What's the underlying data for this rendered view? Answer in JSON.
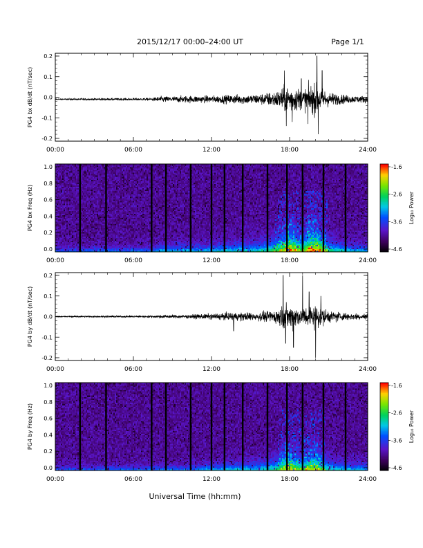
{
  "header": {
    "title": "2015/12/17  00:00–24:00 UT",
    "page": "Page 1/1"
  },
  "xlabel": "Universal Time (hh:mm)",
  "chart_data": [
    {
      "type": "line",
      "ylabel": "PG4 bx dB/dt (nT/sec)",
      "xlim": [
        "00:00",
        "24:00"
      ],
      "xticks": [
        "00:00",
        "06:00",
        "12:00",
        "18:00",
        "24:00"
      ],
      "ylim": [
        -0.2,
        0.2
      ],
      "yticks": [
        "0.2",
        "0.1",
        "0.0",
        "-0.1",
        "-0.2"
      ],
      "baseline": -0.01,
      "envelope": {
        "hours": [
          0,
          2,
          4,
          6,
          7.5,
          8,
          9,
          10,
          11,
          12,
          13,
          14,
          15,
          16,
          17,
          17.5,
          18,
          18.5,
          19,
          19.5,
          20,
          21,
          22,
          23,
          24
        ],
        "amplitude": [
          0.005,
          0.008,
          0.01,
          0.01,
          0.012,
          0.025,
          0.025,
          0.03,
          0.03,
          0.03,
          0.035,
          0.04,
          0.04,
          0.05,
          0.07,
          0.1,
          0.12,
          0.1,
          0.08,
          0.12,
          0.13,
          0.06,
          0.04,
          0.03,
          0.03
        ]
      },
      "spikes": [
        {
          "hour": 17.6,
          "value": 0.13
        },
        {
          "hour": 17.75,
          "value": -0.14
        },
        {
          "hour": 18.2,
          "value": -0.12
        },
        {
          "hour": 18.9,
          "value": 0.09
        },
        {
          "hour": 19.4,
          "value": -0.13
        },
        {
          "hour": 20.1,
          "value": 0.2
        },
        {
          "hour": 20.2,
          "value": -0.18
        },
        {
          "hour": 20.5,
          "value": 0.13
        }
      ]
    },
    {
      "type": "heatmap",
      "ylabel": "PG4 bx Freq (Hz)",
      "xlim": [
        "00:00",
        "24:00"
      ],
      "xticks": [
        "00:00",
        "06:00",
        "12:00",
        "18:00",
        "24:00"
      ],
      "ylim": [
        0.0,
        1.0
      ],
      "yticks": [
        "1.0",
        "0.8",
        "0.6",
        "0.4",
        "0.2",
        "0.0"
      ],
      "colorbar": {
        "label": "Log₁₀ Power",
        "range": [
          -4.6,
          -1.6
        ],
        "ticks": [
          "-1.6",
          "-2.6",
          "-3.6",
          "-4.6"
        ]
      },
      "data_gaps_hours": [
        1.9,
        3.9,
        7.4,
        8.5,
        10.4,
        12.0,
        13.0,
        14.4,
        16.3,
        17.8,
        19.0,
        20.6,
        22.3
      ]
    },
    {
      "type": "line",
      "ylabel": "PG4 by dB/dt (nT/sec)",
      "xlim": [
        "00:00",
        "24:00"
      ],
      "xticks": [
        "00:00",
        "06:00",
        "12:00",
        "18:00",
        "24:00"
      ],
      "ylim": [
        -0.2,
        0.2
      ],
      "yticks": [
        "0.2",
        "0.1",
        "0.0",
        "-0.1",
        "-0.2"
      ],
      "baseline": 0.0,
      "envelope": {
        "hours": [
          0,
          2,
          4,
          6,
          7.5,
          8,
          9,
          10,
          11,
          12,
          13,
          14,
          15,
          16,
          17,
          17.5,
          18,
          18.5,
          19,
          19.5,
          20,
          21,
          22,
          23,
          24
        ],
        "amplitude": [
          0.004,
          0.006,
          0.008,
          0.008,
          0.01,
          0.012,
          0.015,
          0.015,
          0.02,
          0.025,
          0.03,
          0.035,
          0.035,
          0.04,
          0.06,
          0.09,
          0.1,
          0.09,
          0.07,
          0.1,
          0.1,
          0.05,
          0.035,
          0.03,
          0.025
        ]
      },
      "spikes": [
        {
          "hour": 13.7,
          "value": -0.07
        },
        {
          "hour": 17.5,
          "value": 0.2
        },
        {
          "hour": 17.7,
          "value": -0.13
        },
        {
          "hour": 18.3,
          "value": -0.15
        },
        {
          "hour": 19.0,
          "value": 0.2
        },
        {
          "hour": 19.5,
          "value": 0.12
        },
        {
          "hour": 20.0,
          "value": -0.2
        },
        {
          "hour": 20.4,
          "value": 0.1
        }
      ]
    },
    {
      "type": "heatmap",
      "ylabel": "PG4 by Freq (Hz)",
      "xlim": [
        "00:00",
        "24:00"
      ],
      "xticks": [
        "00:00",
        "06:00",
        "12:00",
        "18:00",
        "24:00"
      ],
      "ylim": [
        0.0,
        1.0
      ],
      "yticks": [
        "1.0",
        "0.8",
        "0.6",
        "0.4",
        "0.2",
        "0.0"
      ],
      "colorbar": {
        "label": "Log₁₀ Power",
        "range": [
          -4.6,
          -1.6
        ],
        "ticks": [
          "-1.6",
          "-2.6",
          "-3.6",
          "-4.6"
        ]
      },
      "data_gaps_hours": [
        1.9,
        3.9,
        7.4,
        8.5,
        10.4,
        12.0,
        13.0,
        14.4,
        16.3,
        17.8,
        19.0,
        20.6,
        22.3
      ]
    }
  ]
}
